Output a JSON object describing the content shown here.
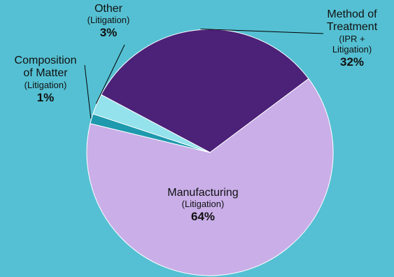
{
  "chart_data": {
    "type": "pie",
    "title": "",
    "legend": "none",
    "slices": [
      {
        "name": "Method of",
        "name2": "Treatment",
        "sub": "(IPR +",
        "sub2": "Litigation)",
        "label": "32%",
        "value": 32,
        "color": "#4c2178"
      },
      {
        "name": "Manufacturing",
        "name2": "",
        "sub": "(Litigation)",
        "sub2": "",
        "label": "64%",
        "value": 64,
        "color": "#c9aee8"
      },
      {
        "name": "Composition",
        "name2": "of Matter",
        "sub": "(Litigation)",
        "sub2": "",
        "label": "1%",
        "value": 1.3,
        "color": "#1e99ad"
      },
      {
        "name": "Other",
        "name2": "",
        "sub": "(Litigation)",
        "sub2": "",
        "label": "3%",
        "value": 2.7,
        "color": "#94e2ec"
      }
    ]
  },
  "colors": {
    "background": "#55c0d3",
    "leader": "#000000",
    "slice_border": "#ffffff"
  }
}
